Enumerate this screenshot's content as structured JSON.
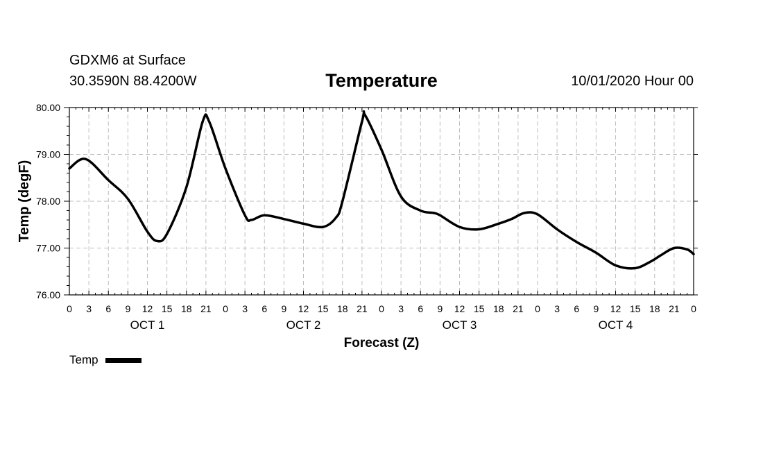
{
  "header": {
    "station": "GDXM6 at Surface",
    "coords": "30.3590N 88.4200W",
    "title": "Temperature",
    "datetime": "10/01/2020 Hour 00"
  },
  "legend": {
    "label": "Temp"
  },
  "chart_data": {
    "type": "line",
    "title": "Temperature",
    "xlabel": "Forecast (Z)",
    "ylabel": "Temp (degF)",
    "ylim": [
      76.0,
      80.0
    ],
    "yticks": [
      "76.00",
      "77.00",
      "78.00",
      "79.00",
      "80.00"
    ],
    "ytick_values": [
      76,
      77,
      78,
      79,
      80
    ],
    "xlim_hours": [
      0,
      96
    ],
    "xtick_labels": [
      "0",
      "3",
      "6",
      "9",
      "12",
      "15",
      "18",
      "21",
      "0",
      "3",
      "6",
      "9",
      "12",
      "15",
      "18",
      "21",
      "0",
      "3",
      "6",
      "9",
      "12",
      "15",
      "18",
      "21",
      "0",
      "3",
      "6",
      "9",
      "12",
      "15",
      "18",
      "21",
      "0"
    ],
    "day_labels": [
      "OCT 1",
      "OCT 2",
      "OCT 3",
      "OCT 4"
    ],
    "day_label_hours": [
      12,
      36,
      60,
      84
    ],
    "grid": true,
    "series": [
      {
        "name": "Temp",
        "x_hours": [
          0,
          2.5,
          6,
          9,
          12,
          13.5,
          15,
          18,
          20.5,
          21.5,
          24,
          27,
          28,
          30,
          33,
          36,
          39,
          41,
          42,
          45,
          45.5,
          48,
          51,
          54,
          56,
          57,
          60,
          63,
          66,
          68,
          70,
          72,
          75,
          78,
          81,
          84,
          87,
          89.5,
          91,
          93,
          95,
          96
        ],
        "values": [
          78.7,
          78.9,
          78.45,
          78.05,
          77.35,
          77.15,
          77.3,
          78.3,
          79.7,
          79.7,
          78.7,
          77.7,
          77.6,
          77.7,
          77.62,
          77.52,
          77.45,
          77.65,
          78.0,
          79.7,
          79.83,
          79.1,
          78.1,
          77.8,
          77.75,
          77.7,
          77.45,
          77.4,
          77.52,
          77.62,
          77.75,
          77.72,
          77.4,
          77.13,
          76.9,
          76.63,
          76.57,
          76.72,
          76.85,
          77.0,
          76.97,
          76.87
        ]
      }
    ]
  }
}
